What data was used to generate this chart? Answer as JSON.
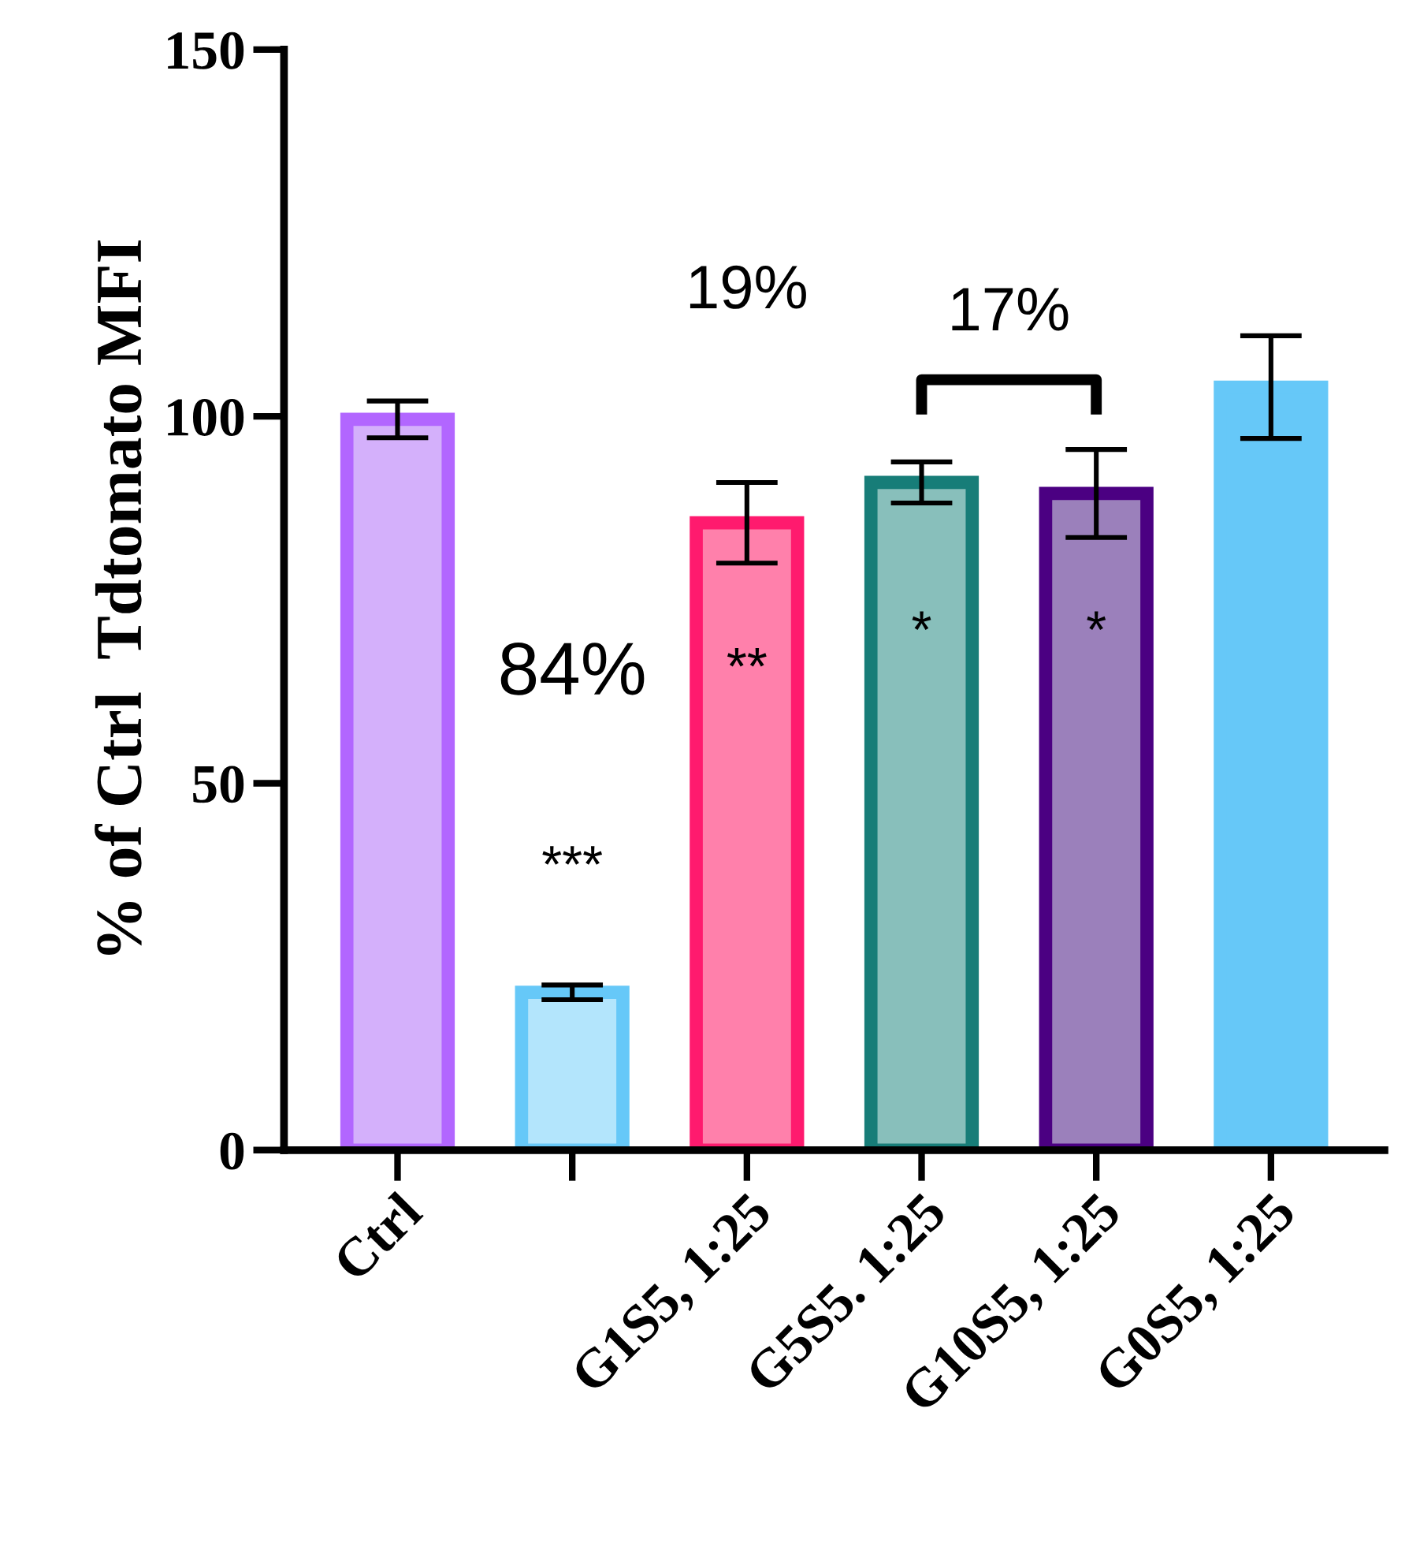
{
  "chart_data": {
    "type": "bar",
    "ylabel": "% of Ctrl  Tdtomato MFI",
    "categories": [
      "Ctrl",
      null,
      "G1S5, 1:25",
      "G5S5. 1:25",
      "G10S5, 1:25",
      "G0S5, 1:25"
    ],
    "values": [
      99.6,
      21.5,
      85.5,
      91,
      89.5,
      104
    ],
    "errors": [
      2.5,
      1,
      5.5,
      2.8,
      6,
      7
    ],
    "colors": [
      "#d4b0fb",
      "#b3e5fc",
      "#ff80ab",
      "#88bfbb",
      "#9b80bb",
      "#66c8f8"
    ],
    "ylim": [
      0,
      150
    ],
    "yticks": [
      0,
      50,
      100,
      150
    ],
    "grid": false,
    "annotations": [
      "84%",
      "***",
      "19%",
      "**",
      "*",
      "*",
      "17%"
    ]
  }
}
